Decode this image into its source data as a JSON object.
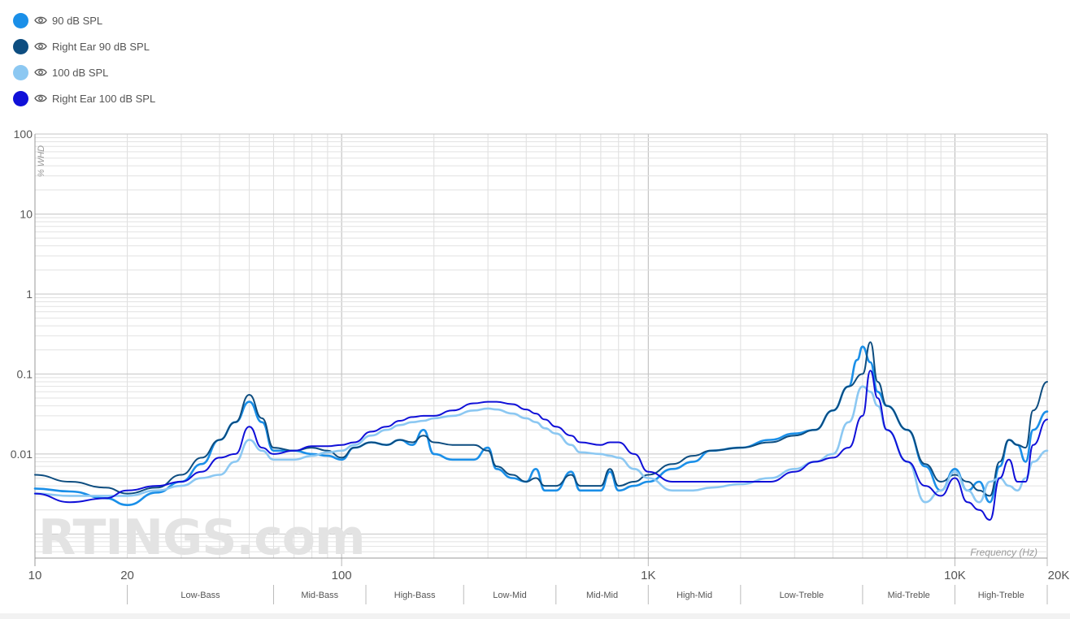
{
  "legend": [
    {
      "label": "90 dB SPL",
      "color": "#1a8fe8",
      "icon": "eye-icon"
    },
    {
      "label": "Right Ear 90 dB SPL",
      "color": "#0d4d80",
      "icon": "eye-icon"
    },
    {
      "label": "100 dB SPL",
      "color": "#8cc8f2",
      "icon": "eye-icon"
    },
    {
      "label": "Right Ear 100 dB SPL",
      "color": "#1010d8",
      "icon": "eye-icon"
    }
  ],
  "watermark": "RTINGS.com",
  "chart_data": {
    "type": "line",
    "xscale": "log",
    "yscale": "log",
    "xlim": [
      10,
      20000
    ],
    "ylim": [
      0.0005,
      100
    ],
    "ylabel": "% WHD",
    "xlabel": "Frequency (Hz)",
    "x_ticks": [
      {
        "value": 10,
        "label": "10"
      },
      {
        "value": 20,
        "label": "20"
      },
      {
        "value": 100,
        "label": "100"
      },
      {
        "value": 1000,
        "label": "1K"
      },
      {
        "value": 10000,
        "label": "10K"
      },
      {
        "value": 20000,
        "label": "20K"
      }
    ],
    "y_ticks": [
      {
        "value": 100,
        "label": "100"
      },
      {
        "value": 10,
        "label": "10"
      },
      {
        "value": 1,
        "label": "1"
      },
      {
        "value": 0.1,
        "label": "0.1"
      },
      {
        "value": 0.01,
        "label": "0.01"
      }
    ],
    "bands": [
      {
        "label": "Low-Bass",
        "from": 20,
        "to": 60
      },
      {
        "label": "Mid-Bass",
        "from": 60,
        "to": 120
      },
      {
        "label": "High-Bass",
        "from": 120,
        "to": 250
      },
      {
        "label": "Low-Mid",
        "from": 250,
        "to": 500
      },
      {
        "label": "Mid-Mid",
        "from": 500,
        "to": 1000
      },
      {
        "label": "High-Mid",
        "from": 1000,
        "to": 2000
      },
      {
        "label": "Low-Treble",
        "from": 2000,
        "to": 5000
      },
      {
        "label": "Mid-Treble",
        "from": 5000,
        "to": 10000
      },
      {
        "label": "High-Treble",
        "from": 10000,
        "to": 20000
      }
    ],
    "series": [
      {
        "name": "90 dB SPL",
        "color": "#1a8fe8",
        "width": 2.6,
        "points": [
          [
            10,
            0.0037
          ],
          [
            13,
            0.0034
          ],
          [
            17,
            0.0028
          ],
          [
            20,
            0.0023
          ],
          [
            25,
            0.0033
          ],
          [
            30,
            0.0045
          ],
          [
            35,
            0.0075
          ],
          [
            40,
            0.015
          ],
          [
            45,
            0.025
          ],
          [
            50,
            0.045
          ],
          [
            55,
            0.025
          ],
          [
            60,
            0.011
          ],
          [
            70,
            0.011
          ],
          [
            80,
            0.01
          ],
          [
            90,
            0.0095
          ],
          [
            100,
            0.0085
          ],
          [
            110,
            0.012
          ],
          [
            125,
            0.014
          ],
          [
            140,
            0.013
          ],
          [
            155,
            0.015
          ],
          [
            170,
            0.013
          ],
          [
            185,
            0.02
          ],
          [
            200,
            0.01
          ],
          [
            230,
            0.0085
          ],
          [
            270,
            0.0085
          ],
          [
            300,
            0.012
          ],
          [
            320,
            0.0065
          ],
          [
            360,
            0.005
          ],
          [
            400,
            0.0045
          ],
          [
            430,
            0.0065
          ],
          [
            460,
            0.0035
          ],
          [
            500,
            0.0035
          ],
          [
            560,
            0.006
          ],
          [
            600,
            0.0035
          ],
          [
            700,
            0.0035
          ],
          [
            750,
            0.006
          ],
          [
            800,
            0.0035
          ],
          [
            900,
            0.004
          ],
          [
            1000,
            0.0045
          ],
          [
            1200,
            0.0065
          ],
          [
            1400,
            0.008
          ],
          [
            1600,
            0.011
          ],
          [
            2000,
            0.012
          ],
          [
            2500,
            0.015
          ],
          [
            3000,
            0.018
          ],
          [
            3500,
            0.02
          ],
          [
            4000,
            0.035
          ],
          [
            4500,
            0.07
          ],
          [
            4800,
            0.15
          ],
          [
            5000,
            0.22
          ],
          [
            5300,
            0.14
          ],
          [
            5600,
            0.06
          ],
          [
            6000,
            0.04
          ],
          [
            7000,
            0.02
          ],
          [
            8000,
            0.007
          ],
          [
            9000,
            0.0035
          ],
          [
            10000,
            0.0065
          ],
          [
            11000,
            0.0035
          ],
          [
            12000,
            0.0045
          ],
          [
            13000,
            0.0025
          ],
          [
            14000,
            0.007
          ],
          [
            15000,
            0.015
          ],
          [
            16000,
            0.013
          ],
          [
            17000,
            0.008
          ],
          [
            18000,
            0.02
          ],
          [
            20000,
            0.034
          ]
        ]
      },
      {
        "name": "Right Ear 90 dB SPL",
        "color": "#0d4d80",
        "width": 2.0,
        "points": [
          [
            10,
            0.0055
          ],
          [
            13,
            0.0045
          ],
          [
            17,
            0.0038
          ],
          [
            20,
            0.0032
          ],
          [
            25,
            0.0038
          ],
          [
            30,
            0.0055
          ],
          [
            35,
            0.009
          ],
          [
            40,
            0.015
          ],
          [
            45,
            0.025
          ],
          [
            50,
            0.055
          ],
          [
            55,
            0.028
          ],
          [
            60,
            0.012
          ],
          [
            70,
            0.011
          ],
          [
            80,
            0.012
          ],
          [
            90,
            0.011
          ],
          [
            100,
            0.009
          ],
          [
            110,
            0.012
          ],
          [
            125,
            0.014
          ],
          [
            140,
            0.013
          ],
          [
            155,
            0.015
          ],
          [
            170,
            0.014
          ],
          [
            185,
            0.017
          ],
          [
            200,
            0.014
          ],
          [
            230,
            0.013
          ],
          [
            270,
            0.013
          ],
          [
            300,
            0.011
          ],
          [
            320,
            0.007
          ],
          [
            360,
            0.0055
          ],
          [
            400,
            0.0045
          ],
          [
            430,
            0.005
          ],
          [
            460,
            0.004
          ],
          [
            500,
            0.004
          ],
          [
            560,
            0.0055
          ],
          [
            600,
            0.004
          ],
          [
            700,
            0.004
          ],
          [
            750,
            0.0065
          ],
          [
            800,
            0.004
          ],
          [
            900,
            0.0045
          ],
          [
            1000,
            0.0055
          ],
          [
            1200,
            0.0075
          ],
          [
            1400,
            0.0095
          ],
          [
            1600,
            0.011
          ],
          [
            2000,
            0.012
          ],
          [
            2500,
            0.014
          ],
          [
            3000,
            0.017
          ],
          [
            3500,
            0.02
          ],
          [
            4000,
            0.035
          ],
          [
            4500,
            0.07
          ],
          [
            5000,
            0.1
          ],
          [
            5300,
            0.25
          ],
          [
            5600,
            0.08
          ],
          [
            6000,
            0.04
          ],
          [
            7000,
            0.02
          ],
          [
            8000,
            0.0075
          ],
          [
            9000,
            0.0045
          ],
          [
            10000,
            0.0055
          ],
          [
            11000,
            0.0045
          ],
          [
            12000,
            0.0035
          ],
          [
            13000,
            0.003
          ],
          [
            14000,
            0.008
          ],
          [
            15000,
            0.015
          ],
          [
            16000,
            0.013
          ],
          [
            17000,
            0.012
          ],
          [
            18000,
            0.035
          ],
          [
            20000,
            0.08
          ]
        ]
      },
      {
        "name": "100 dB SPL",
        "color": "#8cc8f2",
        "width": 2.6,
        "points": [
          [
            10,
            0.0032
          ],
          [
            13,
            0.003
          ],
          [
            17,
            0.003
          ],
          [
            20,
            0.003
          ],
          [
            25,
            0.0035
          ],
          [
            30,
            0.004
          ],
          [
            35,
            0.005
          ],
          [
            40,
            0.0055
          ],
          [
            45,
            0.008
          ],
          [
            50,
            0.015
          ],
          [
            55,
            0.011
          ],
          [
            60,
            0.0085
          ],
          [
            70,
            0.0085
          ],
          [
            80,
            0.0095
          ],
          [
            90,
            0.0105
          ],
          [
            100,
            0.011
          ],
          [
            110,
            0.013
          ],
          [
            125,
            0.017
          ],
          [
            140,
            0.02
          ],
          [
            155,
            0.023
          ],
          [
            170,
            0.025
          ],
          [
            185,
            0.026
          ],
          [
            200,
            0.028
          ],
          [
            230,
            0.03
          ],
          [
            270,
            0.035
          ],
          [
            300,
            0.037
          ],
          [
            320,
            0.036
          ],
          [
            360,
            0.032
          ],
          [
            400,
            0.028
          ],
          [
            430,
            0.025
          ],
          [
            460,
            0.021
          ],
          [
            500,
            0.018
          ],
          [
            560,
            0.013
          ],
          [
            600,
            0.0105
          ],
          [
            700,
            0.01
          ],
          [
            750,
            0.0095
          ],
          [
            800,
            0.009
          ],
          [
            900,
            0.0065
          ],
          [
            1000,
            0.005
          ],
          [
            1200,
            0.0035
          ],
          [
            1400,
            0.0035
          ],
          [
            1600,
            0.0038
          ],
          [
            2000,
            0.0042
          ],
          [
            2500,
            0.005
          ],
          [
            3000,
            0.0065
          ],
          [
            3500,
            0.008
          ],
          [
            4000,
            0.01
          ],
          [
            4500,
            0.025
          ],
          [
            5000,
            0.07
          ],
          [
            5300,
            0.06
          ],
          [
            5600,
            0.04
          ],
          [
            6000,
            0.02
          ],
          [
            7000,
            0.008
          ],
          [
            8000,
            0.0025
          ],
          [
            9000,
            0.0035
          ],
          [
            10000,
            0.006
          ],
          [
            11000,
            0.0035
          ],
          [
            12000,
            0.0025
          ],
          [
            13000,
            0.0045
          ],
          [
            14000,
            0.005
          ],
          [
            15000,
            0.004
          ],
          [
            16000,
            0.0035
          ],
          [
            17000,
            0.005
          ],
          [
            18000,
            0.008
          ],
          [
            20000,
            0.011
          ]
        ]
      },
      {
        "name": "Right Ear 100 dB SPL",
        "color": "#1010d8",
        "width": 2.0,
        "points": [
          [
            10,
            0.0032
          ],
          [
            13,
            0.0025
          ],
          [
            17,
            0.0028
          ],
          [
            20,
            0.0035
          ],
          [
            25,
            0.004
          ],
          [
            30,
            0.0045
          ],
          [
            35,
            0.006
          ],
          [
            40,
            0.009
          ],
          [
            45,
            0.01
          ],
          [
            50,
            0.022
          ],
          [
            55,
            0.012
          ],
          [
            60,
            0.01
          ],
          [
            70,
            0.011
          ],
          [
            80,
            0.0125
          ],
          [
            90,
            0.0125
          ],
          [
            100,
            0.013
          ],
          [
            110,
            0.014
          ],
          [
            125,
            0.019
          ],
          [
            140,
            0.022
          ],
          [
            155,
            0.026
          ],
          [
            170,
            0.029
          ],
          [
            185,
            0.03
          ],
          [
            200,
            0.03
          ],
          [
            230,
            0.035
          ],
          [
            270,
            0.043
          ],
          [
            300,
            0.045
          ],
          [
            320,
            0.045
          ],
          [
            360,
            0.042
          ],
          [
            400,
            0.036
          ],
          [
            430,
            0.032
          ],
          [
            460,
            0.027
          ],
          [
            500,
            0.022
          ],
          [
            560,
            0.017
          ],
          [
            600,
            0.014
          ],
          [
            700,
            0.013
          ],
          [
            750,
            0.014
          ],
          [
            800,
            0.014
          ],
          [
            900,
            0.01
          ],
          [
            1000,
            0.006
          ],
          [
            1200,
            0.0045
          ],
          [
            1400,
            0.0045
          ],
          [
            1600,
            0.0045
          ],
          [
            2000,
            0.0045
          ],
          [
            2500,
            0.0045
          ],
          [
            3000,
            0.006
          ],
          [
            3500,
            0.008
          ],
          [
            4000,
            0.009
          ],
          [
            4500,
            0.012
          ],
          [
            5000,
            0.03
          ],
          [
            5300,
            0.11
          ],
          [
            5600,
            0.05
          ],
          [
            6000,
            0.02
          ],
          [
            7000,
            0.008
          ],
          [
            8000,
            0.004
          ],
          [
            9000,
            0.003
          ],
          [
            10000,
            0.005
          ],
          [
            11000,
            0.0025
          ],
          [
            12000,
            0.002
          ],
          [
            13000,
            0.0015
          ],
          [
            14000,
            0.005
          ],
          [
            15000,
            0.0085
          ],
          [
            16000,
            0.0045
          ],
          [
            17000,
            0.0045
          ],
          [
            18000,
            0.013
          ],
          [
            20000,
            0.027
          ]
        ]
      }
    ]
  }
}
